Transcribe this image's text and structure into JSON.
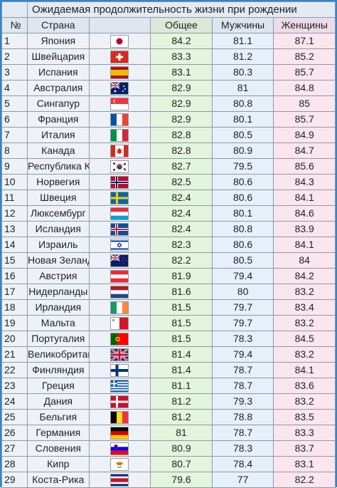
{
  "title": "Ожидаемая продолжительность жизни при рождении",
  "headers": {
    "num": "№",
    "country": "Страна",
    "total": "Общее",
    "men": "Мужчины",
    "women": "Женщины"
  },
  "rows": [
    {
      "n": "1",
      "country": "Япония",
      "flag": "japan-flag-icon",
      "total": "84.2",
      "men": "81.1",
      "women": "87.1"
    },
    {
      "n": "2",
      "country": "Швейцария",
      "flag": "switzerland-flag-icon",
      "total": "83.3",
      "men": "81.2",
      "women": "85.2"
    },
    {
      "n": "3",
      "country": "Испания",
      "flag": "spain-flag-icon",
      "total": "83.1",
      "men": "80.3",
      "women": "85.7"
    },
    {
      "n": "4",
      "country": "Австралия",
      "flag": "australia-flag-icon",
      "total": "82.9",
      "men": "81",
      "women": "84.8"
    },
    {
      "n": "5",
      "country": "Сингапур",
      "flag": "singapore-flag-icon",
      "total": "82.9",
      "men": "80.8",
      "women": "85"
    },
    {
      "n": "6",
      "country": "Франция",
      "flag": "france-flag-icon",
      "total": "82.9",
      "men": "80.1",
      "women": "85.7"
    },
    {
      "n": "7",
      "country": "Италия",
      "flag": "italy-flag-icon",
      "total": "82.8",
      "men": "80.5",
      "women": "84.9"
    },
    {
      "n": "8",
      "country": "Канада",
      "flag": "canada-flag-icon",
      "total": "82.8",
      "men": "80.9",
      "women": "84.7"
    },
    {
      "n": "9",
      "country": "Республика Корея",
      "flag": "south-korea-flag-icon",
      "total": "82.7",
      "men": "79.5",
      "women": "85.6"
    },
    {
      "n": "10",
      "country": "Норвегия",
      "flag": "norway-flag-icon",
      "total": "82.5",
      "men": "80.6",
      "women": "84.3"
    },
    {
      "n": "11",
      "country": "Швеция",
      "flag": "sweden-flag-icon",
      "total": "82.4",
      "men": "80.6",
      "women": "84.1"
    },
    {
      "n": "12",
      "country": "Люксембург",
      "flag": "luxembourg-flag-icon",
      "total": "82.4",
      "men": "80.1",
      "women": "84.6"
    },
    {
      "n": "13",
      "country": "Исландия",
      "flag": "iceland-flag-icon",
      "total": "82.4",
      "men": "80.8",
      "women": "83.9"
    },
    {
      "n": "14",
      "country": "Израиль",
      "flag": "israel-flag-icon",
      "total": "82.3",
      "men": "80.6",
      "women": "84.1"
    },
    {
      "n": "15",
      "country": "Новая Зеландия",
      "flag": "new-zealand-flag-icon",
      "total": "82.2",
      "men": "80.5",
      "women": "84"
    },
    {
      "n": "16",
      "country": "Австрия",
      "flag": "austria-flag-icon",
      "total": "81.9",
      "men": "79.4",
      "women": "84.2"
    },
    {
      "n": "17",
      "country": "Нидерланды",
      "flag": "netherlands-flag-icon",
      "total": "81.6",
      "men": "80",
      "women": "83.2"
    },
    {
      "n": "18",
      "country": "Ирландия",
      "flag": "ireland-flag-icon",
      "total": "81.5",
      "men": "79.7",
      "women": "83.4"
    },
    {
      "n": "19",
      "country": "Мальта",
      "flag": "malta-flag-icon",
      "total": "81.5",
      "men": "79.7",
      "women": "83.2"
    },
    {
      "n": "20",
      "country": "Португалия",
      "flag": "portugal-flag-icon",
      "total": "81.5",
      "men": "78.3",
      "women": "84.5"
    },
    {
      "n": "21",
      "country": "Великобритания",
      "flag": "uk-flag-icon",
      "total": "81.4",
      "men": "79.4",
      "women": "83.2"
    },
    {
      "n": "22",
      "country": "Финляндия",
      "flag": "finland-flag-icon",
      "total": "81.4",
      "men": "78.7",
      "women": "84.1"
    },
    {
      "n": "23",
      "country": "Греция",
      "flag": "greece-flag-icon",
      "total": "81.1",
      "men": "78.7",
      "women": "83.6"
    },
    {
      "n": "24",
      "country": "Дания",
      "flag": "denmark-flag-icon",
      "total": "81.2",
      "men": "79.3",
      "women": "83.2"
    },
    {
      "n": "25",
      "country": "Бельгия",
      "flag": "belgium-flag-icon",
      "total": "81.2",
      "men": "78.8",
      "women": "83.5"
    },
    {
      "n": "26",
      "country": "Германия",
      "flag": "germany-flag-icon",
      "total": "81",
      "men": "78.7",
      "women": "83.3"
    },
    {
      "n": "27",
      "country": "Словения",
      "flag": "slovenia-flag-icon",
      "total": "80.9",
      "men": "78.3",
      "women": "83.7"
    },
    {
      "n": "28",
      "country": "Кипр",
      "flag": "cyprus-flag-icon",
      "total": "80.7",
      "men": "78.4",
      "women": "83.1"
    },
    {
      "n": "29",
      "country": "Коста-Рика",
      "flag": "costa-rica-flag-icon",
      "total": "79.6",
      "men": "77",
      "women": "82.2"
    }
  ]
}
